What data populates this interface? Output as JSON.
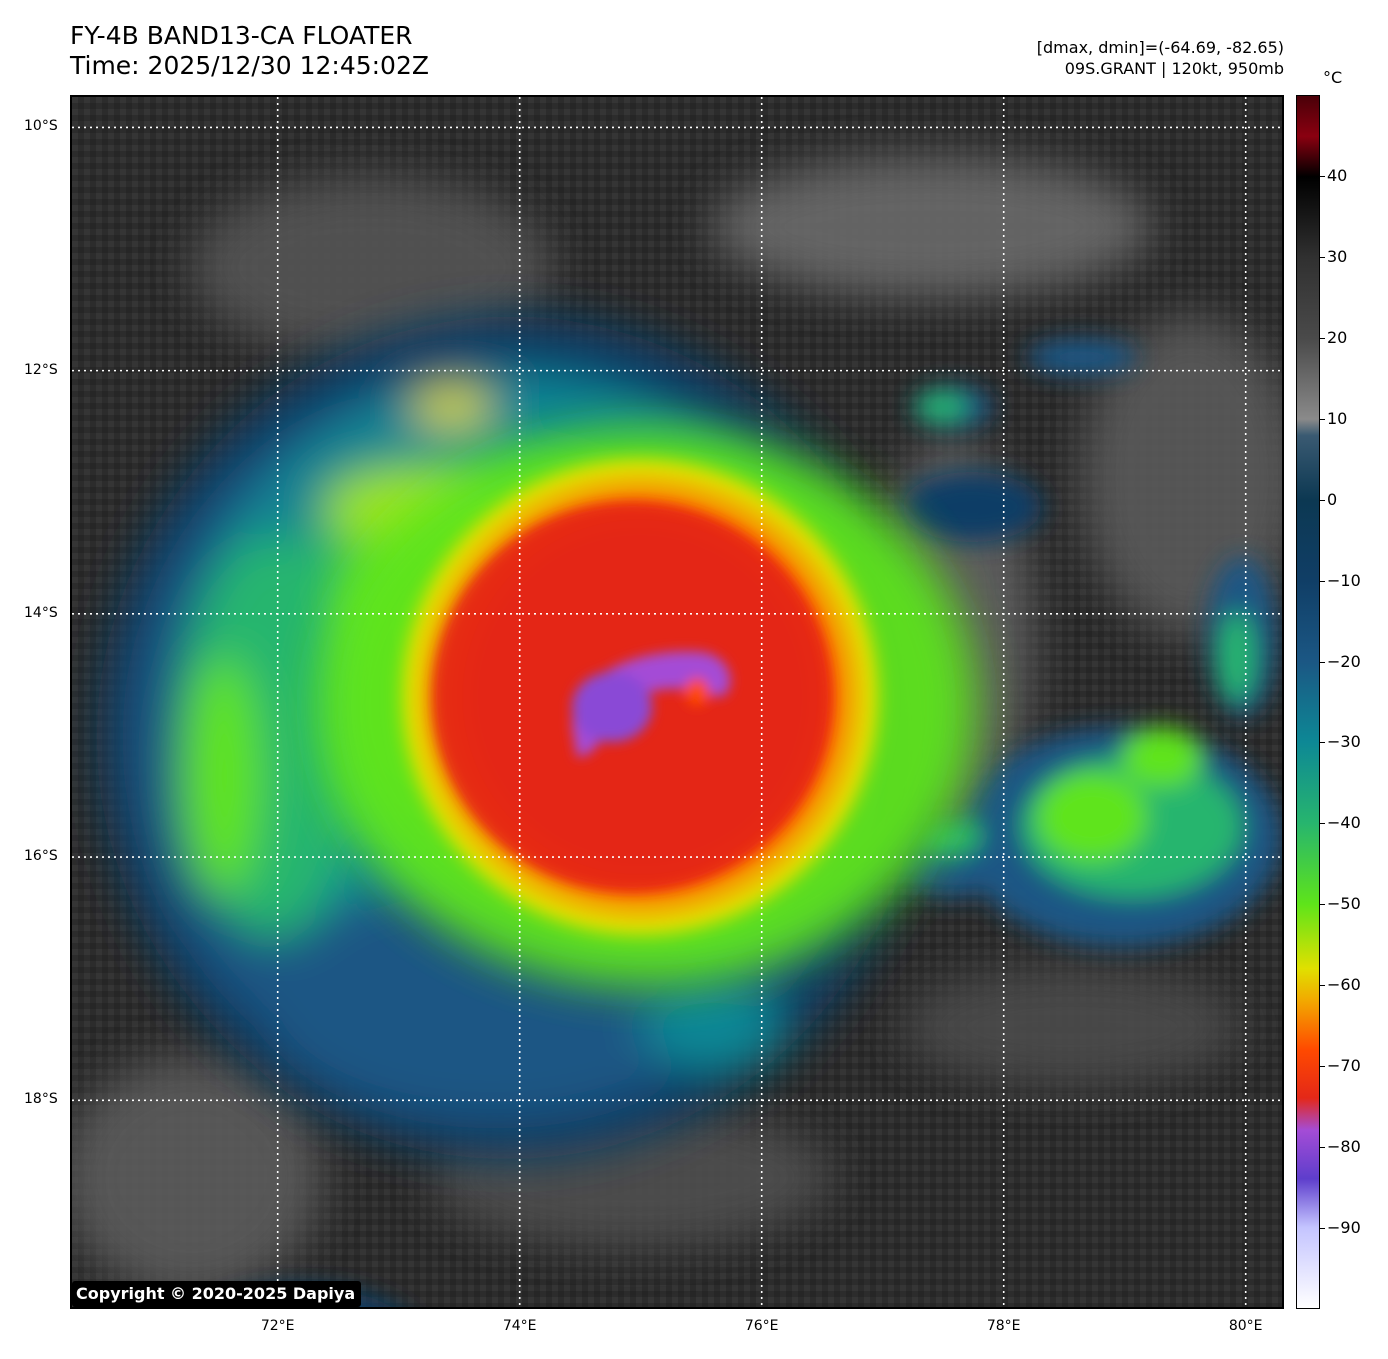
{
  "header": {
    "title_line1": "FY-4B BAND13-CA FLOATER",
    "title_line2": "Time: 2025/12/30 12:45:02Z",
    "info_line1": "[dmax, dmin]=(-64.69, -82.65)",
    "info_line2": "09S.GRANT | 120kt, 950mb"
  },
  "map": {
    "lat_range": [
      -19.7,
      -9.75
    ],
    "lon_range": [
      70.3,
      80.3
    ],
    "lat_labels": [
      {
        "value": -10,
        "text": "10°S"
      },
      {
        "value": -12,
        "text": "12°S"
      },
      {
        "value": -14,
        "text": "14°S"
      },
      {
        "value": -16,
        "text": "16°S"
      },
      {
        "value": -18,
        "text": "18°S"
      }
    ],
    "lon_labels": [
      {
        "value": 72,
        "text": "72°E"
      },
      {
        "value": 74,
        "text": "74°E"
      },
      {
        "value": 76,
        "text": "76°E"
      },
      {
        "value": 78,
        "text": "78°E"
      },
      {
        "value": 80,
        "text": "80°E"
      }
    ],
    "gridlines": "dotted white",
    "storm_center": {
      "lon": 75.2,
      "lat": -14.9
    },
    "copyright": "Copyright © 2020-2025 Dapiya"
  },
  "colorbar": {
    "unit": "°C",
    "range": [
      -100,
      50
    ],
    "ticks": [
      {
        "value": 40,
        "text": "40"
      },
      {
        "value": 30,
        "text": "30"
      },
      {
        "value": 20,
        "text": "20"
      },
      {
        "value": 10,
        "text": "10"
      },
      {
        "value": 0,
        "text": "0"
      },
      {
        "value": -10,
        "text": "−10"
      },
      {
        "value": -20,
        "text": "−20"
      },
      {
        "value": -30,
        "text": "−30"
      },
      {
        "value": -40,
        "text": "−40"
      },
      {
        "value": -50,
        "text": "−50"
      },
      {
        "value": -60,
        "text": "−60"
      },
      {
        "value": -70,
        "text": "−70"
      },
      {
        "value": -80,
        "text": "−80"
      },
      {
        "value": -90,
        "text": "−90"
      }
    ],
    "colors": {
      "c50": "#4a0008",
      "c45": "#8a0010",
      "c40": "#000000",
      "c30": "#303030",
      "c20": "#4a4a4a",
      "c10": "#8a8a8a",
      "c8": "#3a5a72",
      "c0": "#0c3852",
      "cm10": "#103e66",
      "cm20": "#1b5784",
      "cm30": "#0d8895",
      "cm40": "#27b56e",
      "cm50": "#5ee41a",
      "cm58": "#e0e000",
      "cm62": "#f2a800",
      "cm68": "#ff4a00",
      "cm74": "#e42818",
      "cm78": "#a44cd6",
      "cm84": "#5e3ecc",
      "cm90": "#c4c4ff",
      "cm100": "#ffffff"
    }
  }
}
